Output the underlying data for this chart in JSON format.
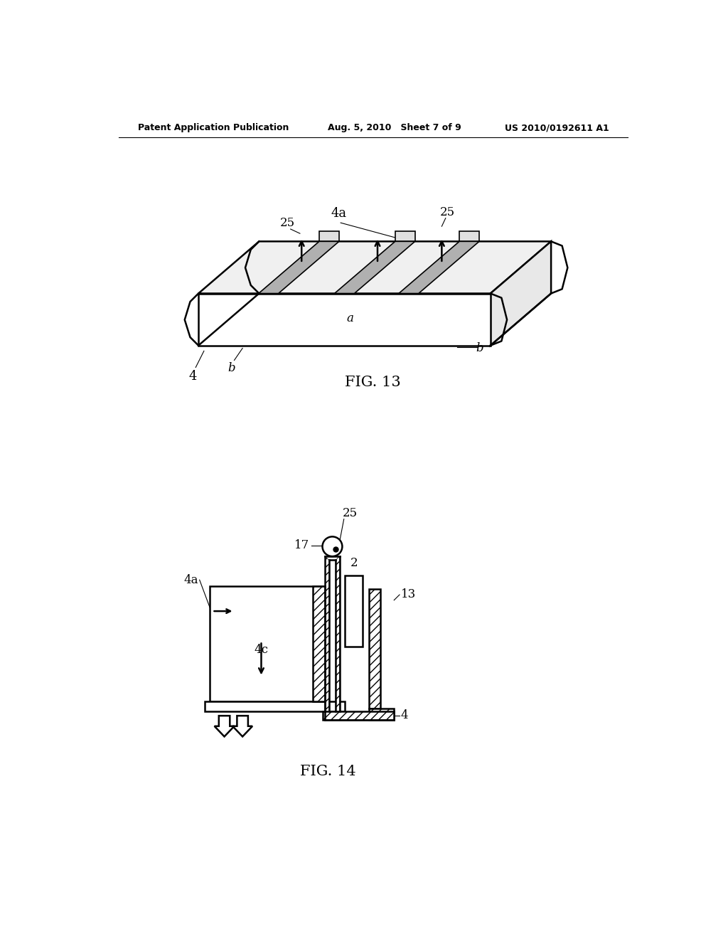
{
  "bg_color": "#ffffff",
  "line_color": "#000000",
  "header_left": "Patent Application Publication",
  "header_mid": "Aug. 5, 2010   Sheet 7 of 9",
  "header_right": "US 2010/0192611 A1",
  "fig13_label": "FIG. 13",
  "fig14_label": "FIG. 14"
}
